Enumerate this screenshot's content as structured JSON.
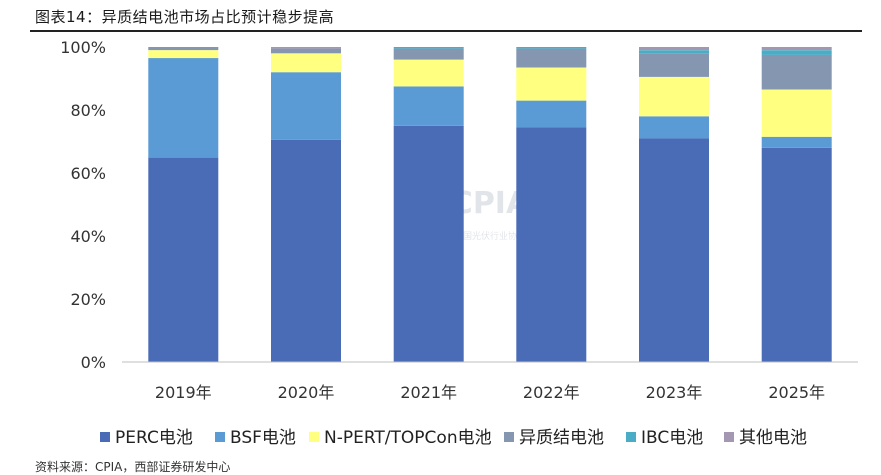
{
  "header": {
    "title": "图表14：异质结电池市场占比预计稳步提高"
  },
  "footer": {
    "source": "资料来源：CPIA，西部证券研发中心"
  },
  "watermark": {
    "text": "CPIA",
    "subtext": "中国光伏行业协会"
  },
  "chart_data": {
    "type": "bar",
    "stacked": true,
    "categories": [
      "2019年",
      "2020年",
      "2021年",
      "2022年",
      "2023年",
      "2025年"
    ],
    "y_ticks": [
      "0%",
      "20%",
      "40%",
      "60%",
      "80%",
      "100%"
    ],
    "ylim": [
      0,
      100
    ],
    "grid": false,
    "legend_position": "bottom",
    "series": [
      {
        "name": "PERC电池",
        "color": "#4a6bb5",
        "values": [
          65,
          70.5,
          75,
          74.5,
          71,
          68
        ]
      },
      {
        "name": "BSF电池",
        "color": "#5b9bd5",
        "values": [
          31.5,
          21.5,
          12.5,
          8.5,
          7,
          3.5
        ]
      },
      {
        "name": "N-PERT/TOPCon电池",
        "color": "#ffff80",
        "values": [
          2.5,
          6,
          8.5,
          10.5,
          12.5,
          15
        ]
      },
      {
        "name": "异质结电池",
        "color": "#8496b0",
        "values": [
          1,
          1.5,
          3.5,
          6,
          7.5,
          11
        ]
      },
      {
        "name": "IBC电池",
        "color": "#4bacc6",
        "values": [
          0,
          0,
          0.5,
          0.5,
          1,
          1.5
        ]
      },
      {
        "name": "其他电池",
        "color": "#a497b1",
        "values": [
          0,
          0.5,
          0,
          0,
          1,
          1
        ]
      }
    ]
  }
}
